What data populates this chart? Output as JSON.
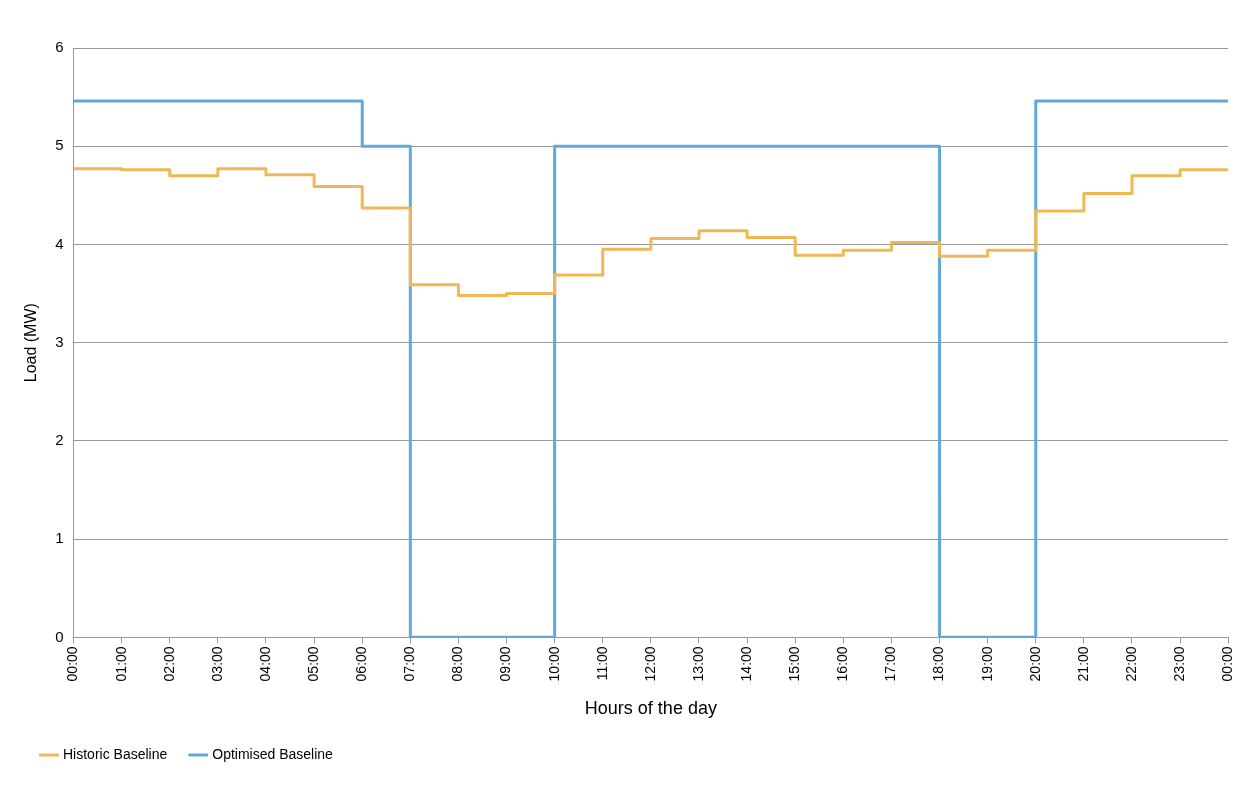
{
  "chart_data": {
    "type": "step",
    "xlabel": "Hours of the day",
    "ylabel": "Load (MW)",
    "x": [
      0,
      1,
      2,
      3,
      4,
      5,
      6,
      7,
      8,
      9,
      10,
      11,
      12,
      13,
      14,
      15,
      16,
      17,
      18,
      19,
      20,
      21,
      22,
      23,
      24
    ],
    "series": [
      {
        "name": "Historic Baseline",
        "color": "#f0b854",
        "values": [
          4.77,
          4.76,
          4.7,
          4.77,
          4.71,
          4.59,
          4.37,
          3.59,
          3.48,
          3.5,
          3.69,
          3.95,
          4.06,
          4.14,
          4.07,
          3.89,
          3.94,
          4.02,
          3.88,
          3.94,
          4.34,
          4.52,
          4.7,
          4.76,
          4.76
        ]
      },
      {
        "name": "Optimised Baseline",
        "color": "#62a8d6",
        "values": [
          5.46,
          5.46,
          5.46,
          5.46,
          5.46,
          5.46,
          5,
          0,
          0,
          0,
          5,
          5,
          5,
          5,
          5,
          5,
          5,
          5,
          0,
          0,
          5.46,
          5.46,
          5.46,
          5.46,
          5.46
        ]
      }
    ],
    "xlim": [
      0,
      24
    ],
    "xticks": [
      {
        "value": 0,
        "label": "00:00"
      },
      {
        "value": 1,
        "label": "01:00"
      },
      {
        "value": 2,
        "label": "02:00"
      },
      {
        "value": 3,
        "label": "03:00"
      },
      {
        "value": 4,
        "label": "04:00"
      },
      {
        "value": 5,
        "label": "05:00"
      },
      {
        "value": 6,
        "label": "06:00"
      },
      {
        "value": 7,
        "label": "07:00"
      },
      {
        "value": 8,
        "label": "08:00"
      },
      {
        "value": 9,
        "label": "09:00"
      },
      {
        "value": 10,
        "label": "10:00"
      },
      {
        "value": 11,
        "label": "11:00"
      },
      {
        "value": 12,
        "label": "12:00"
      },
      {
        "value": 13,
        "label": "13:00"
      },
      {
        "value": 14,
        "label": "14:00"
      },
      {
        "value": 15,
        "label": "15:00"
      },
      {
        "value": 16,
        "label": "16:00"
      },
      {
        "value": 17,
        "label": "17:00"
      },
      {
        "value": 18,
        "label": "18:00"
      },
      {
        "value": 19,
        "label": "19:00"
      },
      {
        "value": 20,
        "label": "20:00"
      },
      {
        "value": 21,
        "label": "21:00"
      },
      {
        "value": 22,
        "label": "22:00"
      },
      {
        "value": 23,
        "label": "23:00"
      },
      {
        "value": 24,
        "label": "00:00"
      }
    ],
    "ylim": [
      0,
      6
    ],
    "yticks": [
      0,
      1,
      2,
      3,
      4,
      5,
      6
    ],
    "grid": "y",
    "legend": "bottom left",
    "marker": "none",
    "line_style": "solid"
  }
}
